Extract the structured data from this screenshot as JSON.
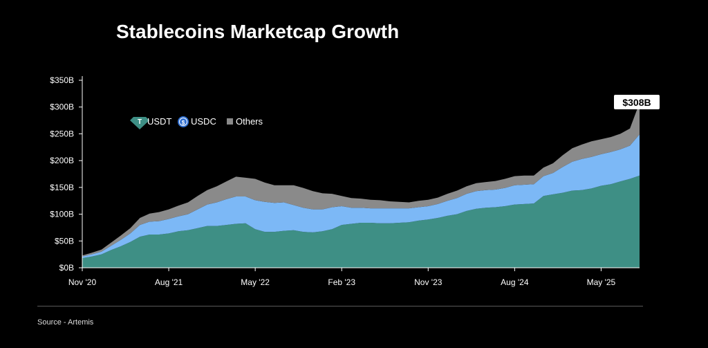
{
  "title": "Stablecoins Marketcap Growth",
  "source": "Source - Artemis",
  "colors": {
    "USDT": "#3e8f85",
    "USDC": "#7cb8f6",
    "Others": "#8a8a8a",
    "axis": "#ffffff"
  },
  "chart_data": {
    "type": "area",
    "stacked": true,
    "title": "Stablecoins Marketcap Growth",
    "xlabel": "",
    "ylabel": "",
    "ylim": [
      0,
      350
    ],
    "y_unit": "$B",
    "y_ticks": [
      "$0B",
      "$50B",
      "$100B",
      "$150B",
      "$200B",
      "$250B",
      "$300B",
      "$350B"
    ],
    "x_ticks": [
      {
        "label": "Nov '20",
        "index": 0
      },
      {
        "label": "Aug '21",
        "index": 9
      },
      {
        "label": "May '22",
        "index": 18
      },
      {
        "label": "Feb '23",
        "index": 27
      },
      {
        "label": "Nov '23",
        "index": 36
      },
      {
        "label": "Aug '24",
        "index": 45
      },
      {
        "label": "May '25",
        "index": 54
      }
    ],
    "legend": {
      "position": "top-left",
      "entries": [
        "USDT",
        "USDC",
        "Others"
      ]
    },
    "annotation": {
      "label": "$308B",
      "index": 58
    },
    "x": [
      "Nov '20",
      "Dec '20",
      "Jan '21",
      "Feb '21",
      "Mar '21",
      "Apr '21",
      "May '21",
      "Jun '21",
      "Jul '21",
      "Aug '21",
      "Sep '21",
      "Oct '21",
      "Nov '21",
      "Dec '21",
      "Jan '22",
      "Feb '22",
      "Mar '22",
      "Apr '22",
      "May '22",
      "Jun '22",
      "Jul '22",
      "Aug '22",
      "Sep '22",
      "Oct '22",
      "Nov '22",
      "Dec '22",
      "Jan '23",
      "Feb '23",
      "Mar '23",
      "Apr '23",
      "May '23",
      "Jun '23",
      "Jul '23",
      "Aug '23",
      "Sep '23",
      "Oct '23",
      "Nov '23",
      "Dec '23",
      "Jan '24",
      "Feb '24",
      "Mar '24",
      "Apr '24",
      "May '24",
      "Jun '24",
      "Jul '24",
      "Aug '24",
      "Sep '24",
      "Oct '24",
      "Nov '24",
      "Dec '24",
      "Jan '25",
      "Feb '25",
      "Mar '25",
      "Apr '25",
      "May '25",
      "Jun '25",
      "Jul '25",
      "Aug '25",
      "Sep '25"
    ],
    "series": [
      {
        "name": "USDT",
        "values": [
          18,
          21,
          25,
          33,
          40,
          48,
          58,
          62,
          62,
          64,
          68,
          70,
          74,
          78,
          78,
          80,
          82,
          83,
          72,
          67,
          67,
          69,
          70,
          67,
          66,
          68,
          72,
          80,
          82,
          84,
          84,
          83,
          83,
          84,
          85,
          88,
          90,
          93,
          97,
          100,
          106,
          110,
          112,
          113,
          115,
          118,
          119,
          120,
          134,
          137,
          140,
          144,
          145,
          148,
          153,
          156,
          161,
          166,
          172
        ]
      },
      {
        "name": "USDC",
        "values": [
          3,
          4,
          5,
          8,
          12,
          16,
          22,
          24,
          25,
          27,
          28,
          30,
          35,
          40,
          44,
          48,
          51,
          50,
          54,
          56,
          54,
          53,
          47,
          45,
          43,
          41,
          41,
          35,
          30,
          28,
          27,
          28,
          28,
          27,
          26,
          25,
          25,
          26,
          28,
          30,
          32,
          33,
          33,
          33,
          34,
          36,
          36,
          36,
          37,
          40,
          48,
          54,
          58,
          59,
          59,
          60,
          60,
          62,
          77
        ]
      },
      {
        "name": "Others",
        "values": [
          2,
          3,
          4,
          6,
          8,
          10,
          13,
          15,
          17,
          18,
          20,
          22,
          25,
          27,
          30,
          33,
          37,
          35,
          40,
          36,
          33,
          32,
          37,
          37,
          34,
          30,
          25,
          19,
          18,
          17,
          16,
          15,
          13,
          12,
          11,
          12,
          12,
          12,
          13,
          14,
          14,
          15,
          15,
          16,
          17,
          17,
          17,
          16,
          16,
          18,
          22,
          25,
          27,
          29,
          28,
          28,
          29,
          32,
          59
        ]
      }
    ]
  }
}
